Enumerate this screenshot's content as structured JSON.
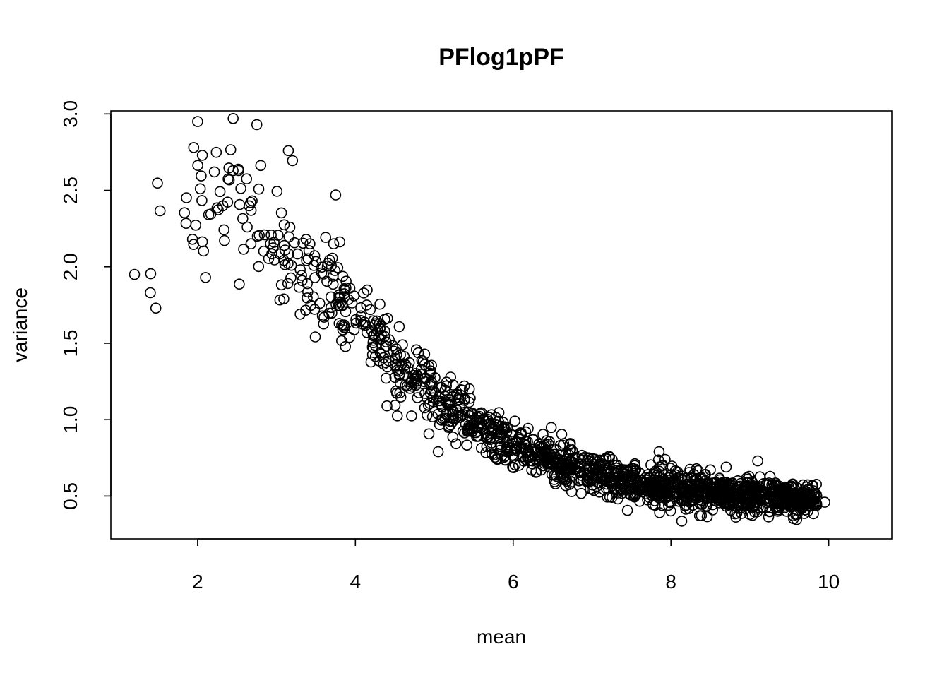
{
  "chart_data": {
    "type": "scatter",
    "title": "PFlog1pPF",
    "xlabel": "mean",
    "ylabel": "variance",
    "xlim": [
      0.9,
      10.8
    ],
    "ylim": [
      0.22,
      3.02
    ],
    "x_ticks": [
      2,
      4,
      6,
      8,
      10
    ],
    "x_tick_labels": [
      "2",
      "4",
      "6",
      "8",
      "10"
    ],
    "y_ticks": [
      0.5,
      1.0,
      1.5,
      2.0,
      2.5,
      3.0
    ],
    "y_tick_labels": [
      "0.5",
      "1.0",
      "1.5",
      "2.0",
      "2.5",
      "3.0"
    ],
    "marker": "open-circle",
    "color": "#000000",
    "grid": false,
    "legend": "none",
    "trend_points": [
      {
        "x": 1.3,
        "y": 2.0
      },
      {
        "x": 1.6,
        "y": 2.25
      },
      {
        "x": 2.0,
        "y": 2.45
      },
      {
        "x": 2.5,
        "y": 2.45
      },
      {
        "x": 3.0,
        "y": 2.2
      },
      {
        "x": 3.5,
        "y": 1.95
      },
      {
        "x": 4.0,
        "y": 1.7
      },
      {
        "x": 4.5,
        "y": 1.4
      },
      {
        "x": 5.0,
        "y": 1.17
      },
      {
        "x": 5.5,
        "y": 0.98
      },
      {
        "x": 6.0,
        "y": 0.84
      },
      {
        "x": 6.5,
        "y": 0.73
      },
      {
        "x": 7.0,
        "y": 0.65
      },
      {
        "x": 7.5,
        "y": 0.59
      },
      {
        "x": 8.0,
        "y": 0.55
      },
      {
        "x": 8.5,
        "y": 0.52
      },
      {
        "x": 9.0,
        "y": 0.5
      },
      {
        "x": 9.5,
        "y": 0.49
      },
      {
        "x": 9.9,
        "y": 0.48
      }
    ],
    "notable_points": [
      {
        "x": 2.0,
        "y": 2.95
      },
      {
        "x": 2.45,
        "y": 2.97
      },
      {
        "x": 2.75,
        "y": 2.93
      },
      {
        "x": 1.95,
        "y": 2.78
      },
      {
        "x": 3.15,
        "y": 2.76
      },
      {
        "x": 1.47,
        "y": 1.73
      },
      {
        "x": 1.4,
        "y": 1.83
      },
      {
        "x": 2.1,
        "y": 1.93
      },
      {
        "x": 1.2,
        "y": 1.95
      },
      {
        "x": 3.3,
        "y": 1.69
      },
      {
        "x": 3.75,
        "y": 2.47
      },
      {
        "x": 4.4,
        "y": 1.09
      },
      {
        "x": 5.05,
        "y": 0.79
      },
      {
        "x": 7.85,
        "y": 0.79
      },
      {
        "x": 9.1,
        "y": 0.73
      },
      {
        "x": 8.7,
        "y": 0.69
      },
      {
        "x": 9.95,
        "y": 0.46
      },
      {
        "x": 9.0,
        "y": 0.38
      }
    ],
    "n_points_approx": 1600
  }
}
